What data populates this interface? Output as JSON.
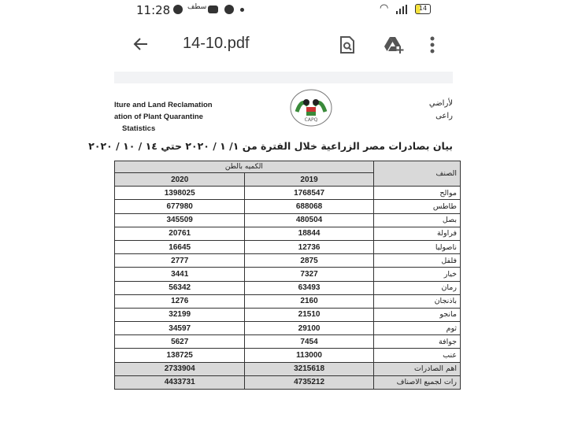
{
  "status_bar": {
    "time": "11:28",
    "battery": "14",
    "notification_text": "سطف"
  },
  "toolbar": {
    "title": "14-10.pdf",
    "icons": [
      "back-arrow-icon",
      "search-document-icon",
      "drive-add-icon",
      "more-vert-icon"
    ]
  },
  "document": {
    "header_en": [
      "lture and Land Reclamation",
      "ation of Plant Quarantine",
      "Statistics"
    ],
    "header_ar": [
      "لأراضي",
      "راعى"
    ],
    "logo_text": "CAPQ",
    "title": "بيان بصادرات مصر الزراعية خلال الفترة من ١/ ١ / ٢٠٢٠ حتي ١٤ / ١٠ / ٢٠٢٠",
    "table": {
      "group_header": "الكميه بالطن",
      "name_header": "الصنف",
      "year_headers": [
        "2020",
        "2019"
      ],
      "rows": [
        {
          "name": "موالح",
          "y2020": "1398025",
          "y2019": "1768547"
        },
        {
          "name": "طاطس",
          "y2020": "677980",
          "y2019": "688068"
        },
        {
          "name": "بصل",
          "y2020": "345509",
          "y2019": "480504"
        },
        {
          "name": "فراولة",
          "y2020": "20761",
          "y2019": "18844"
        },
        {
          "name": "ناصوليا",
          "y2020": "16645",
          "y2019": "12736"
        },
        {
          "name": "فلفل",
          "y2020": "2777",
          "y2019": "2875"
        },
        {
          "name": "خيار",
          "y2020": "3441",
          "y2019": "7327"
        },
        {
          "name": "رمان",
          "y2020": "56342",
          "y2019": "63493"
        },
        {
          "name": "باذنجان",
          "y2020": "1276",
          "y2019": "2160"
        },
        {
          "name": "مانجو",
          "y2020": "32199",
          "y2019": "21510"
        },
        {
          "name": "ثوم",
          "y2020": "34597",
          "y2019": "29100"
        },
        {
          "name": "جوافة",
          "y2020": "5627",
          "y2019": "7454"
        },
        {
          "name": "عنب",
          "y2020": "138725",
          "y2019": "113000"
        }
      ],
      "totals": [
        {
          "name": "اهم الصادرات",
          "y2020": "2733904",
          "y2019": "3215618"
        },
        {
          "name": "رات لجميع الاصناف",
          "y2020": "4433731",
          "y2019": "4735212"
        }
      ]
    }
  }
}
